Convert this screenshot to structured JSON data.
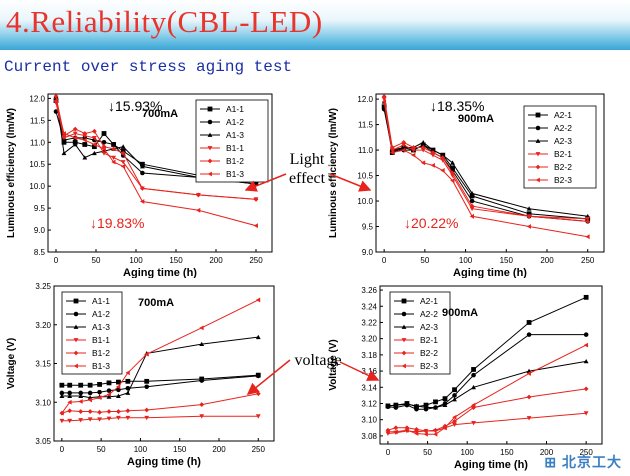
{
  "slide": {
    "title": "4.Reliability(CBL-LED)",
    "subtitle": "Current over stress aging test",
    "annotation_light": [
      "Light",
      "effect"
    ],
    "annotation_voltage": "voltage",
    "colors": {
      "title": "#e8342b",
      "subtitle": "#1b2fa8",
      "black_series": "#000000",
      "red_series": "#e8231d",
      "header_blue": "#3aa5d6"
    },
    "logo_icon": "university-logo-icon"
  },
  "chart_data": [
    {
      "type": "line",
      "xlabel": "Aging time (h)",
      "ylabel": "Luminous efficiency (lm/W)",
      "xlim": [
        -10,
        270
      ],
      "ylim": [
        8.5,
        12.1
      ],
      "xticks": [
        0,
        50,
        100,
        150,
        200,
        250
      ],
      "yticks": [
        8.5,
        9.0,
        9.5,
        10.0,
        10.5,
        11.0,
        11.5,
        12.0
      ],
      "current_label": "700mA",
      "note_black": "↓15.93%",
      "note_red": "↓19.83%",
      "legend_position": "top-right",
      "series": [
        {
          "name": "A1-1",
          "marker": "square",
          "color": "#000000",
          "x": [
            0,
            10,
            24,
            36,
            48,
            60,
            72,
            84,
            108,
            178,
            250
          ],
          "y": [
            11.95,
            11.0,
            11.0,
            10.95,
            10.9,
            11.2,
            10.95,
            10.8,
            10.5,
            10.25,
            10.12
          ]
        },
        {
          "name": "A1-2",
          "marker": "circle",
          "color": "#000000",
          "x": [
            0,
            10,
            24,
            36,
            48,
            60,
            72,
            84,
            108,
            178,
            250
          ],
          "y": [
            11.7,
            11.05,
            11.1,
            11.1,
            11.05,
            11.0,
            10.95,
            10.7,
            10.3,
            10.2,
            10.05
          ]
        },
        {
          "name": "A1-3",
          "marker": "triangle",
          "color": "#000000",
          "x": [
            0,
            10,
            24,
            36,
            48,
            60,
            72,
            84,
            108,
            178,
            250
          ],
          "y": [
            12.05,
            10.75,
            10.95,
            10.65,
            10.75,
            10.8,
            10.85,
            10.9,
            10.45,
            10.2,
            10.05
          ]
        },
        {
          "name": "B1-1",
          "marker": "triangle-down",
          "color": "#e8231d",
          "x": [
            0,
            10,
            24,
            36,
            48,
            60,
            72,
            84,
            108,
            178,
            250
          ],
          "y": [
            11.9,
            11.1,
            11.2,
            11.15,
            11.1,
            10.75,
            10.65,
            10.55,
            9.95,
            9.8,
            9.7
          ]
        },
        {
          "name": "B1-2",
          "marker": "diamond",
          "color": "#e8231d",
          "x": [
            0,
            10,
            24,
            36,
            48,
            60,
            72,
            84,
            108,
            178,
            250
          ],
          "y": [
            12.05,
            11.15,
            11.3,
            11.2,
            11.25,
            10.9,
            10.85,
            10.75,
            9.95,
            9.8,
            9.7
          ]
        },
        {
          "name": "B1-3",
          "marker": "triangle-left",
          "color": "#e8231d",
          "x": [
            0,
            10,
            24,
            36,
            48,
            60,
            72,
            84,
            108,
            178,
            250
          ],
          "y": [
            11.95,
            11.2,
            11.1,
            11.05,
            10.95,
            10.85,
            10.55,
            10.45,
            9.65,
            9.45,
            9.1
          ]
        }
      ]
    },
    {
      "type": "line",
      "xlabel": "Aging time (h)",
      "ylabel": "Luminous efficiency (lm/W)",
      "xlim": [
        -10,
        270
      ],
      "ylim": [
        9.0,
        12.1
      ],
      "xticks": [
        0,
        50,
        100,
        150,
        200,
        250
      ],
      "yticks": [
        9.0,
        9.5,
        10.0,
        10.5,
        11.0,
        11.5,
        12.0
      ],
      "current_label": "900mA",
      "note_black": "↓18.35%",
      "note_red": "↓20.22%",
      "legend_position": "top-right",
      "series": [
        {
          "name": "A2-1",
          "marker": "square",
          "color": "#000000",
          "x": [
            0,
            10,
            24,
            36,
            48,
            60,
            72,
            84,
            108,
            178,
            250
          ],
          "y": [
            11.85,
            10.95,
            11.05,
            11.0,
            11.1,
            11.0,
            10.9,
            10.65,
            10.1,
            9.75,
            9.65
          ]
        },
        {
          "name": "A2-2",
          "marker": "circle",
          "color": "#000000",
          "x": [
            0,
            10,
            24,
            36,
            48,
            60,
            72,
            84,
            108,
            178,
            250
          ],
          "y": [
            11.8,
            11.0,
            11.0,
            11.0,
            11.1,
            10.95,
            10.85,
            10.6,
            10.0,
            9.7,
            9.6
          ]
        },
        {
          "name": "A2-3",
          "marker": "triangle",
          "color": "#000000",
          "x": [
            0,
            10,
            24,
            36,
            48,
            60,
            72,
            84,
            108,
            178,
            250
          ],
          "y": [
            11.95,
            11.0,
            11.05,
            11.05,
            11.15,
            11.0,
            10.9,
            10.75,
            10.15,
            9.85,
            9.7
          ]
        },
        {
          "name": "B2-1",
          "marker": "triangle-down",
          "color": "#e8231d",
          "x": [
            0,
            10,
            24,
            36,
            48,
            60,
            72,
            84,
            108,
            178,
            250
          ],
          "y": [
            12.0,
            11.0,
            11.1,
            11.0,
            11.0,
            10.9,
            10.8,
            10.5,
            9.85,
            9.7,
            9.65
          ]
        },
        {
          "name": "B2-2",
          "marker": "diamond",
          "color": "#e8231d",
          "x": [
            0,
            10,
            24,
            36,
            48,
            60,
            72,
            84,
            108,
            178,
            250
          ],
          "y": [
            12.05,
            11.05,
            11.15,
            11.05,
            11.05,
            10.95,
            10.85,
            10.55,
            9.9,
            9.7,
            9.6
          ]
        },
        {
          "name": "B2-3",
          "marker": "triangle-left",
          "color": "#e8231d",
          "x": [
            0,
            10,
            24,
            36,
            48,
            60,
            72,
            84,
            108,
            178,
            250
          ],
          "y": [
            11.95,
            10.95,
            11.0,
            10.9,
            10.75,
            10.7,
            10.6,
            10.4,
            9.7,
            9.5,
            9.3
          ]
        }
      ]
    },
    {
      "type": "line",
      "xlabel": "Aging time (h)",
      "ylabel": "Voltage (V)",
      "xlim": [
        -10,
        270
      ],
      "ylim": [
        3.05,
        3.25
      ],
      "xticks": [
        0,
        50,
        100,
        150,
        200,
        250
      ],
      "yticks": [
        3.05,
        3.1,
        3.15,
        3.2,
        3.25
      ],
      "current_label": "700mA",
      "legend_position": "top-left",
      "series": [
        {
          "name": "A1-1",
          "marker": "square",
          "color": "#000000",
          "x": [
            0,
            10,
            24,
            36,
            48,
            60,
            72,
            84,
            108,
            178,
            250
          ],
          "y": [
            3.122,
            3.122,
            3.122,
            3.122,
            3.123,
            3.125,
            3.126,
            3.127,
            3.127,
            3.13,
            3.135
          ]
        },
        {
          "name": "A1-2",
          "marker": "circle",
          "color": "#000000",
          "x": [
            0,
            10,
            24,
            36,
            48,
            60,
            72,
            84,
            108,
            178,
            250
          ],
          "y": [
            3.112,
            3.112,
            3.112,
            3.112,
            3.113,
            3.115,
            3.116,
            3.118,
            3.12,
            3.128,
            3.134
          ]
        },
        {
          "name": "A1-3",
          "marker": "triangle",
          "color": "#000000",
          "x": [
            0,
            10,
            24,
            36,
            48,
            60,
            72,
            84,
            108,
            178,
            250
          ],
          "y": [
            3.108,
            3.108,
            3.108,
            3.106,
            3.107,
            3.107,
            3.108,
            3.112,
            3.163,
            3.175,
            3.184
          ]
        },
        {
          "name": "B1-1",
          "marker": "triangle-down",
          "color": "#e8231d",
          "x": [
            0,
            10,
            24,
            36,
            48,
            60,
            72,
            84,
            108,
            178,
            250
          ],
          "y": [
            3.076,
            3.076,
            3.077,
            3.078,
            3.078,
            3.079,
            3.08,
            3.08,
            3.08,
            3.082,
            3.082
          ]
        },
        {
          "name": "B1-2",
          "marker": "diamond",
          "color": "#e8231d",
          "x": [
            0,
            10,
            24,
            36,
            48,
            60,
            72,
            84,
            108,
            178,
            250
          ],
          "y": [
            3.086,
            3.089,
            3.088,
            3.088,
            3.087,
            3.088,
            3.088,
            3.089,
            3.09,
            3.097,
            3.111
          ]
        },
        {
          "name": "B1-3",
          "marker": "triangle-left",
          "color": "#e8231d",
          "x": [
            0,
            10,
            24,
            36,
            48,
            60,
            72,
            84,
            108,
            178,
            250
          ],
          "y": [
            3.086,
            3.1,
            3.101,
            3.103,
            3.106,
            3.11,
            3.12,
            3.138,
            3.162,
            3.196,
            3.232
          ]
        }
      ]
    },
    {
      "type": "line",
      "xlabel": "Aging time (h)",
      "ylabel": "Voltage (V)",
      "xlim": [
        -10,
        270
      ],
      "ylim": [
        3.07,
        3.265
      ],
      "xticks": [
        0,
        50,
        100,
        150,
        200,
        250
      ],
      "yticks": [
        3.08,
        3.1,
        3.12,
        3.14,
        3.16,
        3.18,
        3.2,
        3.22,
        3.24,
        3.26
      ],
      "current_label": "900mA",
      "legend_position": "top-left",
      "series": [
        {
          "name": "A2-1",
          "marker": "square",
          "color": "#000000",
          "x": [
            0,
            10,
            24,
            36,
            48,
            60,
            72,
            84,
            108,
            178,
            250
          ],
          "y": [
            3.117,
            3.118,
            3.12,
            3.116,
            3.118,
            3.122,
            3.126,
            3.137,
            3.162,
            3.22,
            3.251
          ]
        },
        {
          "name": "A2-2",
          "marker": "circle",
          "color": "#000000",
          "x": [
            0,
            10,
            24,
            36,
            48,
            60,
            72,
            84,
            108,
            178,
            250
          ],
          "y": [
            3.116,
            3.115,
            3.118,
            3.113,
            3.113,
            3.115,
            3.12,
            3.13,
            3.155,
            3.205,
            3.205
          ]
        },
        {
          "name": "A2-3",
          "marker": "triangle",
          "color": "#000000",
          "x": [
            0,
            10,
            24,
            36,
            48,
            60,
            72,
            84,
            108,
            178,
            250
          ],
          "y": [
            3.117,
            3.118,
            3.119,
            3.117,
            3.115,
            3.115,
            3.118,
            3.125,
            3.14,
            3.16,
            3.172
          ]
        },
        {
          "name": "B2-1",
          "marker": "triangle-down",
          "color": "#e8231d",
          "x": [
            0,
            10,
            24,
            36,
            48,
            60,
            72,
            84,
            108,
            178,
            250
          ],
          "y": [
            3.083,
            3.084,
            3.086,
            3.085,
            3.086,
            3.086,
            3.09,
            3.094,
            3.096,
            3.102,
            3.108
          ]
        },
        {
          "name": "B2-2",
          "marker": "diamond",
          "color": "#e8231d",
          "x": [
            0,
            10,
            24,
            36,
            48,
            60,
            72,
            84,
            108,
            178,
            250
          ],
          "y": [
            3.087,
            3.09,
            3.09,
            3.088,
            3.086,
            3.087,
            3.092,
            3.098,
            3.115,
            3.128,
            3.138
          ]
        },
        {
          "name": "B2-3",
          "marker": "triangle-left",
          "color": "#e8231d",
          "x": [
            0,
            10,
            24,
            36,
            48,
            60,
            72,
            84,
            108,
            178,
            250
          ],
          "y": [
            3.085,
            3.085,
            3.087,
            3.083,
            3.082,
            3.082,
            3.09,
            3.103,
            3.118,
            3.157,
            3.192
          ]
        }
      ]
    }
  ]
}
